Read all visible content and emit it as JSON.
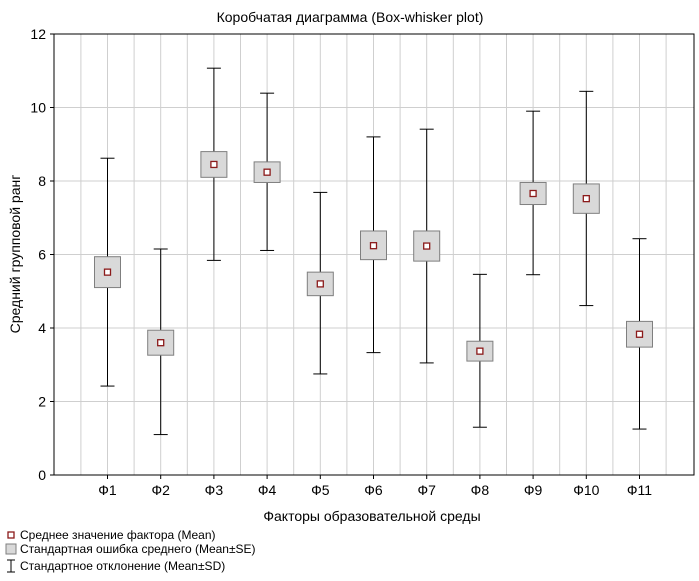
{
  "chart_data": {
    "type": "box",
    "title": "Коробчатая диаграмма (Box-whisker plot)",
    "xlabel": "Факторы образовательной среды",
    "ylabel": "Средний групповой ранг",
    "ylim": [
      0,
      12
    ],
    "yticks": [
      "0",
      "2",
      "4",
      "6",
      "8",
      "10",
      "12"
    ],
    "grid": true,
    "legend_position": "bottom-left",
    "categories": [
      "Ф1",
      "Ф2",
      "Ф3",
      "Ф4",
      "Ф5",
      "Ф6",
      "Ф7",
      "Ф8",
      "Ф9",
      "Ф10",
      "Ф11"
    ],
    "mean": [
      5.52,
      3.6,
      8.45,
      8.24,
      5.2,
      6.24,
      6.23,
      3.37,
      7.66,
      7.52,
      3.83
    ],
    "se_low": [
      5.1,
      3.26,
      8.1,
      7.96,
      4.88,
      5.86,
      5.82,
      3.1,
      7.36,
      7.12,
      3.48
    ],
    "se_high": [
      5.94,
      3.94,
      8.8,
      8.52,
      5.52,
      6.64,
      6.64,
      3.64,
      7.96,
      7.92,
      4.18
    ],
    "sd_low": [
      2.42,
      1.1,
      5.84,
      6.11,
      2.75,
      3.33,
      3.05,
      1.3,
      5.45,
      4.61,
      1.25
    ],
    "sd_high": [
      8.62,
      6.15,
      11.07,
      10.39,
      7.69,
      9.2,
      9.41,
      5.46,
      9.9,
      10.44,
      6.43
    ],
    "colors": {
      "mean_marker": "#8b1a1a",
      "box_fill": "#d9d9d9",
      "box_stroke": "#7f7f7f",
      "grid": "#cfcfcf",
      "axis": "#000000"
    },
    "legend": [
      {
        "label": "Среднее значение фактора (Mean)",
        "symbol": "mean"
      },
      {
        "label": "Стандартная ошибка среднего (Mean±SE)",
        "symbol": "box"
      },
      {
        "label": "Стандартное отклонение (Mean±SD)",
        "symbol": "whisker"
      }
    ]
  }
}
